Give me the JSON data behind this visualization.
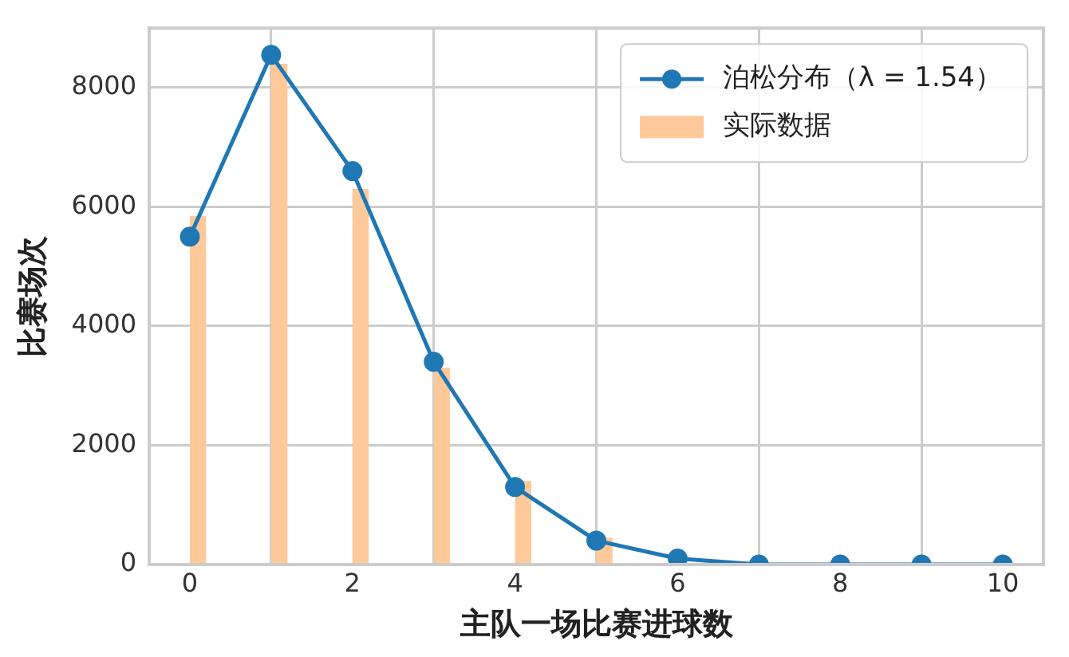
{
  "chart_data": {
    "type": "bar",
    "xlabel": "主队一场比赛进球数",
    "ylabel": "比赛场次",
    "x": [
      0,
      1,
      2,
      3,
      4,
      5,
      6,
      7,
      8,
      9,
      10
    ],
    "series": [
      {
        "name": "泊松分布（λ = 1.54）",
        "type": "line",
        "color": "#1f77b4",
        "values": [
          5500,
          8550,
          6600,
          3400,
          1300,
          400,
          100,
          0,
          0,
          0,
          0
        ]
      },
      {
        "name": "实际数据",
        "color": "#ffc99a",
        "x": [
          0.1,
          1.1,
          2.1,
          3.1,
          4.1,
          5.1,
          6.1,
          7.1,
          8.1,
          9.1,
          10.1
        ],
        "values": [
          5850,
          8400,
          6300,
          3300,
          1400,
          450,
          0,
          0,
          0,
          0,
          0
        ]
      }
    ],
    "xlim": [
      -0.5,
      10.5
    ],
    "xticks": [
      0,
      2,
      4,
      6,
      8,
      10
    ],
    "ylim": [
      0,
      9000
    ],
    "yticks": [
      0,
      2000,
      4000,
      6000,
      8000
    ],
    "grid": true,
    "legend": "top right",
    "marker": "circle",
    "line_style": "solid"
  }
}
